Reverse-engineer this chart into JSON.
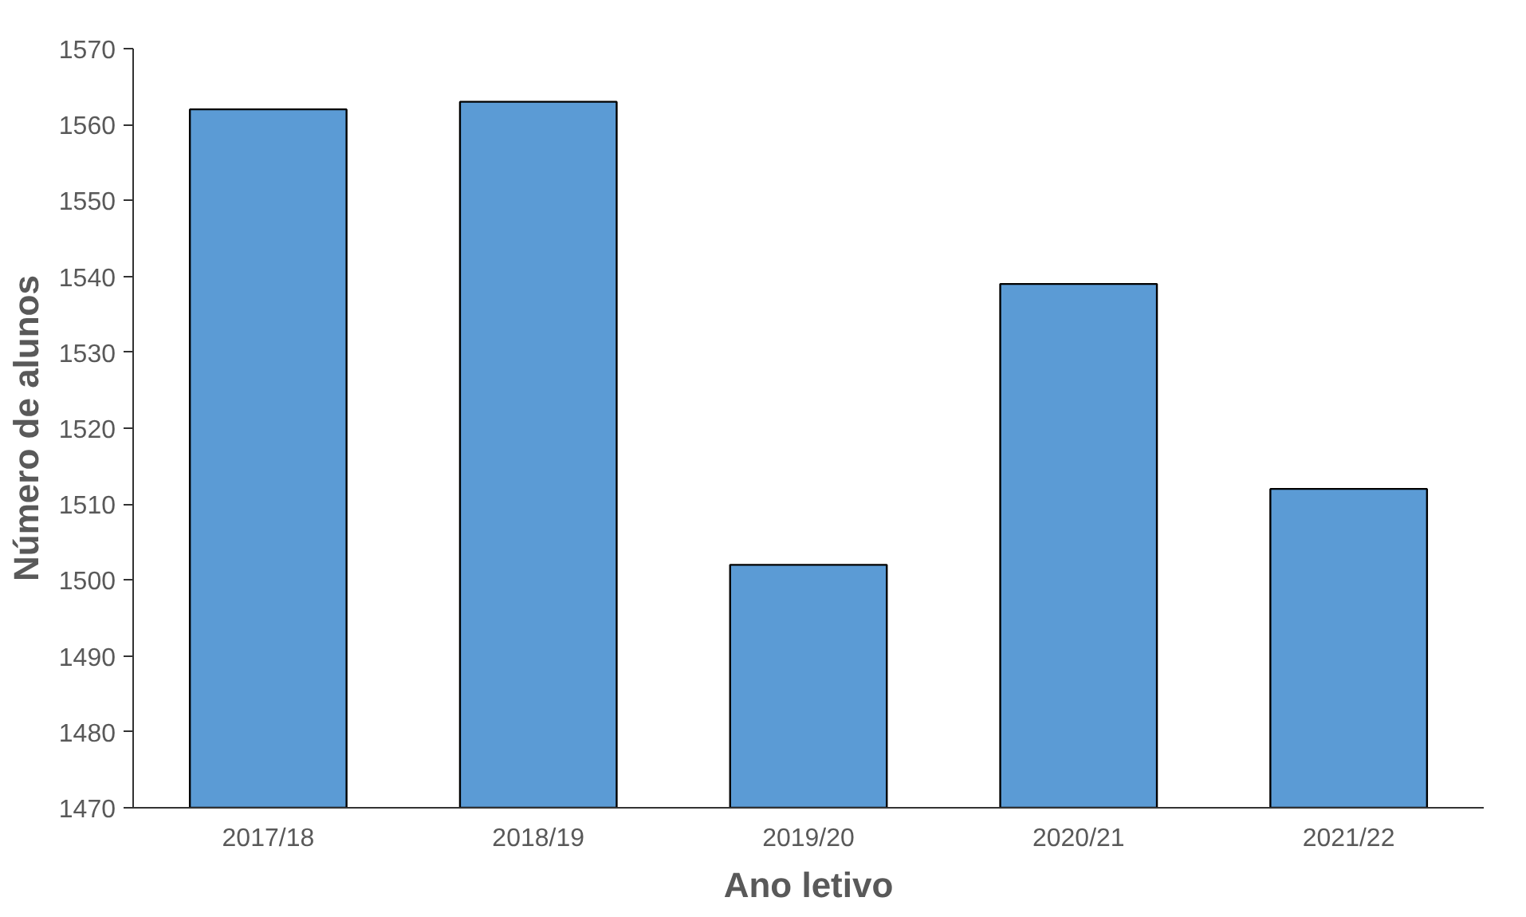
{
  "chart_data": {
    "type": "bar",
    "xlabel": "Ano letivo",
    "ylabel": "Número de alunos",
    "categories": [
      "2017/18",
      "2018/19",
      "2019/20",
      "2020/21",
      "2021/22"
    ],
    "values": [
      1562,
      1563,
      1502,
      1539,
      1512
    ],
    "color": "#5b9bd5",
    "ylim": [
      1470,
      1570
    ],
    "yticks": [
      1470,
      1480,
      1490,
      1500,
      1510,
      1520,
      1530,
      1540,
      1550,
      1560,
      1570
    ]
  }
}
